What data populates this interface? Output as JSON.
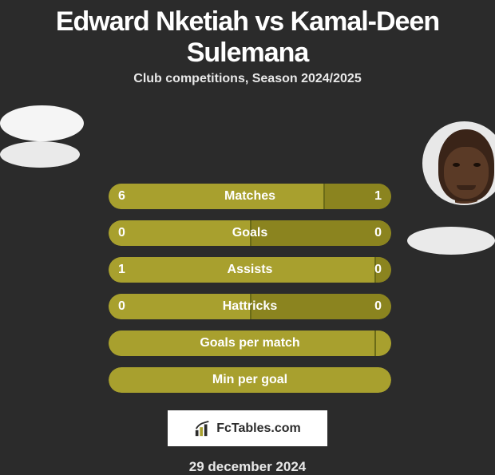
{
  "title": "Edward Nketiah vs Kamal-Deen Sulemana",
  "subtitle": "Club competitions, Season 2024/2025",
  "date": "29 december 2024",
  "watermark_text": "FcTables.com",
  "colors": {
    "background": "#2b2b2b",
    "bar_olive": "#a8a02e",
    "bar_olive_dark": "#8b841f",
    "bar_divider": "#6b6b17",
    "text": "#ffffff",
    "subtext": "#e8e8e8"
  },
  "player_left": {
    "name": "Edward Nketiah"
  },
  "player_right": {
    "name": "Kamal-Deen Sulemana"
  },
  "stats": [
    {
      "label": "Matches",
      "left_value": 6,
      "right_value": 1,
      "left_pct": 76,
      "right_pct": 24,
      "left_color": "#a8a02e",
      "right_color": "#8b841f",
      "border_color": "#a8a02e",
      "show_values": true
    },
    {
      "label": "Goals",
      "left_value": 0,
      "right_value": 0,
      "left_pct": 50,
      "right_pct": 50,
      "left_color": "#a8a02e",
      "right_color": "#8b841f",
      "border_color": "#a8a02e",
      "show_values": true
    },
    {
      "label": "Assists",
      "left_value": 1,
      "right_value": 0,
      "left_pct": 94,
      "right_pct": 6,
      "left_color": "#a8a02e",
      "right_color": "#8b841f",
      "border_color": "#a8a02e",
      "show_values": true
    },
    {
      "label": "Hattricks",
      "left_value": 0,
      "right_value": 0,
      "left_pct": 50,
      "right_pct": 50,
      "left_color": "#a8a02e",
      "right_color": "#8b841f",
      "border_color": "#a8a02e",
      "show_values": true
    },
    {
      "label": "Goals per match",
      "left_value": null,
      "right_value": null,
      "left_pct": 94,
      "right_pct": 6,
      "left_color": "#a8a02e",
      "right_color": "#a8a02e",
      "border_color": "#a8a02e",
      "show_values": false
    },
    {
      "label": "Min per goal",
      "left_value": null,
      "right_value": null,
      "plain": true,
      "plain_color": "#a8a02e",
      "show_values": false
    }
  ]
}
